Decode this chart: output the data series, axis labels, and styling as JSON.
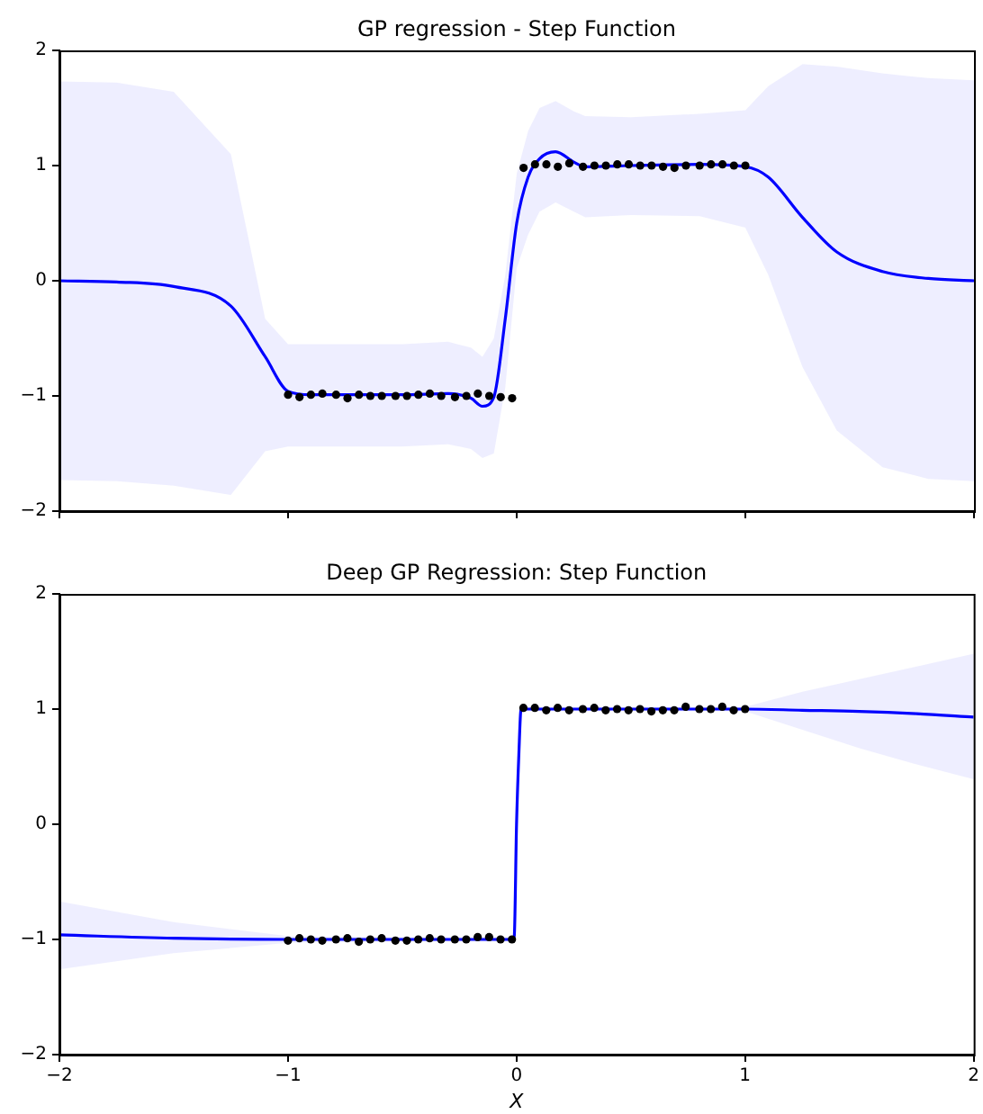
{
  "chart_data": [
    {
      "type": "line",
      "title": "GP regression - Step Function",
      "xlim": [
        -2,
        2
      ],
      "xticks": [
        -2,
        -1,
        0,
        1,
        2
      ],
      "ylim": [
        -2,
        2
      ],
      "yticks": [
        -2,
        -1,
        0,
        1,
        2
      ],
      "tick_labels": "y",
      "series": [
        {
          "type": "line",
          "color": "#0000ff",
          "marker": "none",
          "x": [
            -2,
            -1.75,
            -1.5,
            -1.25,
            -1.1,
            -1,
            -0.9,
            -0.5,
            -0.3,
            -0.2,
            -0.15,
            -0.1,
            -0.05,
            0,
            0.05,
            0.1,
            0.17,
            0.25,
            0.3,
            0.5,
            0.8,
            1,
            1.1,
            1.25,
            1.4,
            1.6,
            1.8,
            2
          ],
          "values": [
            0,
            -0.01,
            -0.05,
            -0.22,
            -0.66,
            -0.96,
            -0.99,
            -0.99,
            -0.98,
            -1.02,
            -1.09,
            -1.01,
            -0.33,
            0.5,
            0.9,
            1.06,
            1.12,
            1.03,
            0.99,
            1,
            1.01,
            0.99,
            0.9,
            0.55,
            0.25,
            0.08,
            0.02,
            0
          ],
          "lower": [
            -1.73,
            -1.74,
            -1.78,
            -1.86,
            -1.48,
            -1.44,
            -1.44,
            -1.44,
            -1.42,
            -1.46,
            -1.54,
            -1.5,
            -0.93,
            0.11,
            0.4,
            0.6,
            0.68,
            0.6,
            0.55,
            0.57,
            0.56,
            0.46,
            0.05,
            -0.75,
            -1.3,
            -1.62,
            -1.72,
            -1.74
          ],
          "upper": [
            1.73,
            1.72,
            1.64,
            1.1,
            -0.33,
            -0.55,
            -0.55,
            -0.55,
            -0.53,
            -0.58,
            -0.66,
            -0.5,
            0.05,
            0.93,
            1.3,
            1.5,
            1.56,
            1.47,
            1.43,
            1.42,
            1.45,
            1.48,
            1.69,
            1.88,
            1.86,
            1.8,
            1.76,
            1.74
          ]
        },
        {
          "type": "scatter",
          "color": "#000000",
          "marker": "circle",
          "x": [
            -1,
            -0.95,
            -0.9,
            -0.85,
            -0.79,
            -0.74,
            -0.69,
            -0.64,
            -0.59,
            -0.53,
            -0.48,
            -0.43,
            -0.38,
            -0.33,
            -0.27,
            -0.22,
            -0.17,
            -0.12,
            -0.07,
            -0.02,
            0.03,
            0.08,
            0.13,
            0.18,
            0.23,
            0.29,
            0.34,
            0.39,
            0.44,
            0.49,
            0.54,
            0.59,
            0.64,
            0.69,
            0.74,
            0.8,
            0.85,
            0.9,
            0.95,
            1
          ],
          "values": [
            -0.99,
            -1.01,
            -0.99,
            -0.98,
            -0.99,
            -1.02,
            -0.99,
            -1,
            -1,
            -1,
            -1,
            -0.99,
            -0.98,
            -1,
            -1.01,
            -1,
            -0.98,
            -1,
            -1.01,
            -1.02,
            0.98,
            1.01,
            1.01,
            0.99,
            1.02,
            0.99,
            1,
            1,
            1.01,
            1.01,
            1,
            1,
            0.99,
            0.98,
            1,
            1,
            1.01,
            1.01,
            1,
            1
          ]
        }
      ]
    },
    {
      "type": "line",
      "title": "Deep GP Regression: Step Function",
      "xlabel": "X",
      "xlim": [
        -2,
        2
      ],
      "xticks": [
        -2,
        -1,
        0,
        1,
        2
      ],
      "ylim": [
        -2,
        2
      ],
      "yticks": [
        -2,
        -1,
        0,
        1,
        2
      ],
      "series": [
        {
          "type": "line",
          "color": "#0000ff",
          "marker": "none",
          "x": [
            -2,
            -1.5,
            -1,
            -0.5,
            -0.02,
            -0.01,
            0,
            0.01,
            0.02,
            0.5,
            1,
            1.25,
            1.5,
            1.75,
            2
          ],
          "values": [
            -0.96,
            -0.99,
            -1,
            -1,
            -1,
            -0.97,
            0,
            0.6,
            1,
            1,
            1,
            0.99,
            0.98,
            0.96,
            0.93
          ],
          "lower": [
            -1.26,
            -1.12,
            -1.03,
            -1.02,
            -1.02,
            -0.99,
            -0.02,
            0.58,
            0.98,
            0.98,
            0.98,
            0.82,
            0.66,
            0.52,
            0.39
          ],
          "upper": [
            -0.67,
            -0.85,
            -0.97,
            -0.98,
            -0.98,
            -0.95,
            0.02,
            0.62,
            1.02,
            1.02,
            1.02,
            1.15,
            1.26,
            1.37,
            1.48
          ]
        },
        {
          "type": "scatter",
          "color": "#000000",
          "marker": "circle",
          "x": [
            -1,
            -0.95,
            -0.9,
            -0.85,
            -0.79,
            -0.74,
            -0.69,
            -0.64,
            -0.59,
            -0.53,
            -0.48,
            -0.43,
            -0.38,
            -0.33,
            -0.27,
            -0.22,
            -0.17,
            -0.12,
            -0.07,
            -0.02,
            0.03,
            0.08,
            0.13,
            0.18,
            0.23,
            0.29,
            0.34,
            0.39,
            0.44,
            0.49,
            0.54,
            0.59,
            0.64,
            0.69,
            0.74,
            0.8,
            0.85,
            0.9,
            0.95,
            1
          ],
          "values": [
            -1.01,
            -0.99,
            -1,
            -1.01,
            -1,
            -0.99,
            -1.02,
            -1,
            -0.99,
            -1.01,
            -1.01,
            -1,
            -0.99,
            -1,
            -1,
            -1,
            -0.98,
            -0.98,
            -1,
            -1,
            1.01,
            1.01,
            0.99,
            1.01,
            0.99,
            1,
            1.01,
            0.99,
            1,
            0.99,
            1,
            0.98,
            0.99,
            0.99,
            1.02,
            1,
            1,
            1.02,
            0.99,
            1
          ]
        }
      ]
    }
  ]
}
